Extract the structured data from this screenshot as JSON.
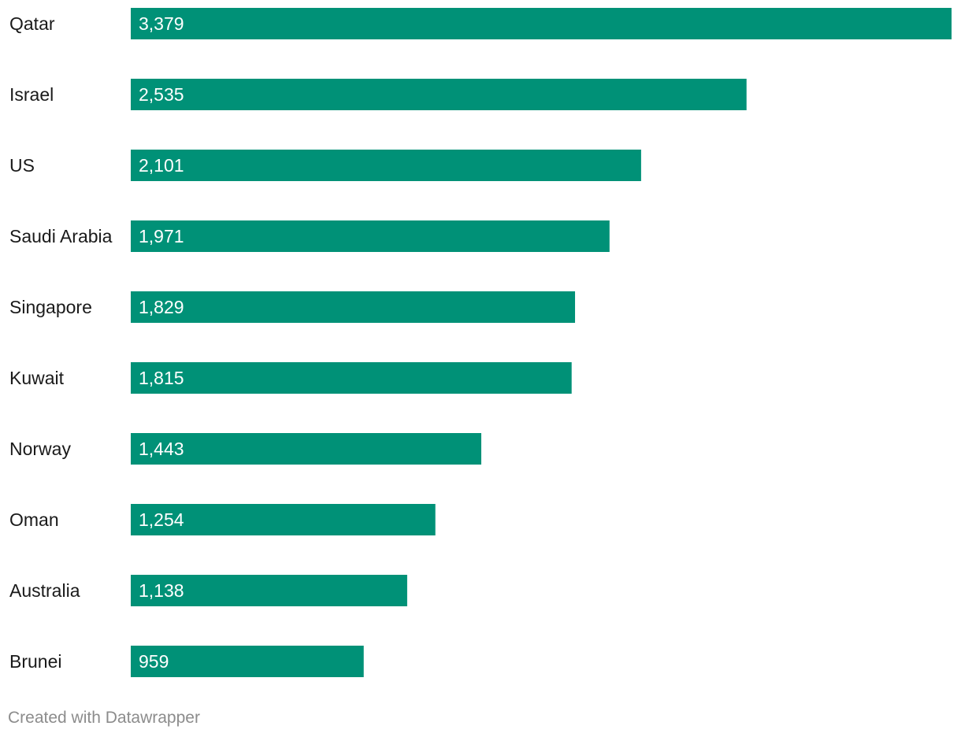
{
  "chart_data": {
    "type": "bar",
    "orientation": "horizontal",
    "categories": [
      "Qatar",
      "Israel",
      "US",
      "Saudi Arabia",
      "Singapore",
      "Kuwait",
      "Norway",
      "Oman",
      "Australia",
      "Brunei"
    ],
    "values": [
      3379,
      2535,
      2101,
      1971,
      1829,
      1815,
      1443,
      1254,
      1138,
      959
    ],
    "value_labels": [
      "3,379",
      "2,535",
      "2,101",
      "1,971",
      "1,829",
      "1,815",
      "1,443",
      "1,254",
      "1,138",
      "959"
    ],
    "xlim": [
      0,
      3379
    ],
    "grid": false,
    "bar_color": "#009177"
  },
  "footer": {
    "credit": "Created with Datawrapper"
  },
  "colors": {
    "bar": "#009177",
    "label_text": "#1a1a1a",
    "value_text": "#ffffff",
    "credit_text": "#8c8c8c"
  }
}
